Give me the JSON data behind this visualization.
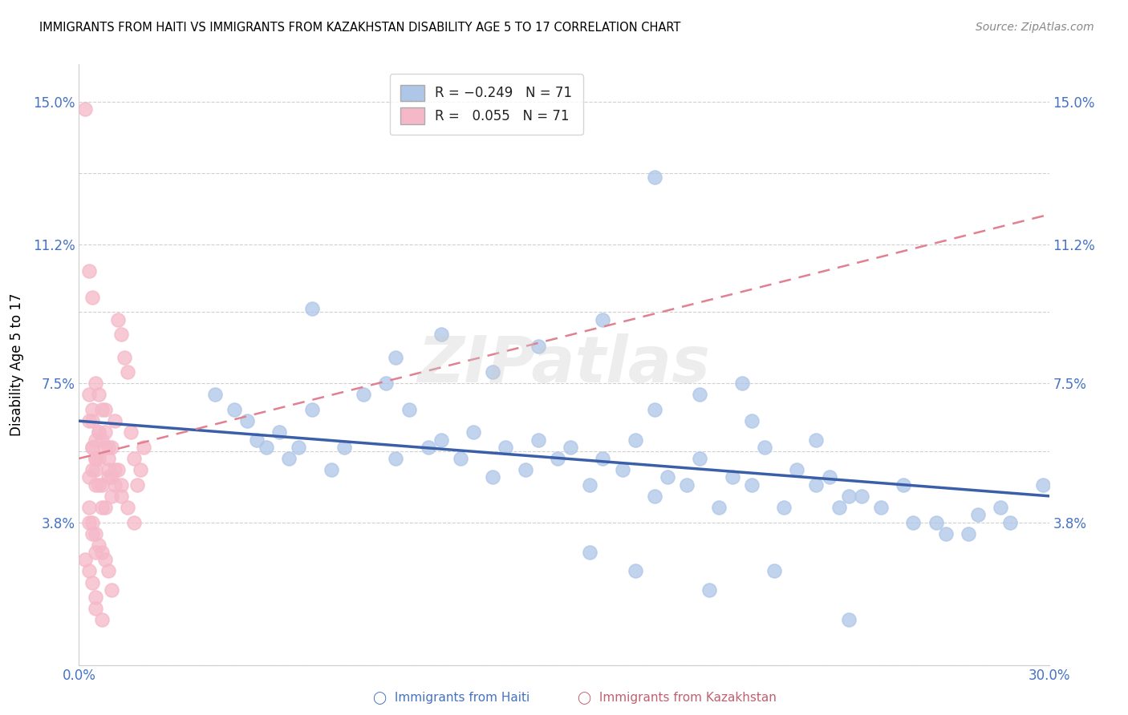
{
  "title": "IMMIGRANTS FROM HAITI VS IMMIGRANTS FROM KAZAKHSTAN DISABILITY AGE 5 TO 17 CORRELATION CHART",
  "source": "Source: ZipAtlas.com",
  "ylabel": "Disability Age 5 to 17",
  "xlim": [
    0.0,
    0.3
  ],
  "ylim": [
    0.0,
    0.16
  ],
  "ytick_labels": [
    "",
    "3.8%",
    "",
    "7.5%",
    "",
    "11.2%",
    "",
    "15.0%"
  ],
  "ytick_values": [
    0.0,
    0.038,
    0.057,
    0.075,
    0.094,
    0.112,
    0.131,
    0.15
  ],
  "xtick_positions": [
    0.0,
    0.03,
    0.06,
    0.09,
    0.12,
    0.15,
    0.18,
    0.21,
    0.24,
    0.27,
    0.3
  ],
  "xtick_labels": [
    "0.0%",
    "",
    "",
    "",
    "",
    "",
    "",
    "",
    "",
    "",
    "30.0%"
  ],
  "haiti_R": -0.249,
  "haiti_N": 71,
  "kazakhstan_R": 0.055,
  "kazakhstan_N": 71,
  "haiti_color": "#aec6e8",
  "kazakhstan_color": "#f5b8c8",
  "haiti_line_color": "#3a5fa8",
  "kazakhstan_line_color": "#e08090",
  "grid_color": "#d0d0d0",
  "watermark_text": "ZIPatlas",
  "haiti_x": [
    0.042,
    0.048,
    0.052,
    0.055,
    0.058,
    0.062,
    0.065,
    0.068,
    0.072,
    0.078,
    0.082,
    0.088,
    0.095,
    0.098,
    0.102,
    0.108,
    0.112,
    0.118,
    0.122,
    0.128,
    0.132,
    0.138,
    0.142,
    0.148,
    0.152,
    0.158,
    0.162,
    0.168,
    0.172,
    0.178,
    0.182,
    0.188,
    0.192,
    0.198,
    0.202,
    0.208,
    0.212,
    0.218,
    0.222,
    0.228,
    0.232,
    0.238,
    0.072,
    0.098,
    0.112,
    0.128,
    0.142,
    0.162,
    0.178,
    0.192,
    0.208,
    0.228,
    0.242,
    0.178,
    0.205,
    0.235,
    0.255,
    0.265,
    0.275,
    0.285,
    0.248,
    0.258,
    0.268,
    0.278,
    0.288,
    0.298,
    0.158,
    0.172,
    0.195,
    0.215,
    0.238
  ],
  "haiti_y": [
    0.072,
    0.068,
    0.065,
    0.06,
    0.058,
    0.062,
    0.055,
    0.058,
    0.068,
    0.052,
    0.058,
    0.072,
    0.075,
    0.055,
    0.068,
    0.058,
    0.06,
    0.055,
    0.062,
    0.05,
    0.058,
    0.052,
    0.06,
    0.055,
    0.058,
    0.048,
    0.055,
    0.052,
    0.06,
    0.045,
    0.05,
    0.048,
    0.055,
    0.042,
    0.05,
    0.048,
    0.058,
    0.042,
    0.052,
    0.048,
    0.05,
    0.045,
    0.095,
    0.082,
    0.088,
    0.078,
    0.085,
    0.092,
    0.068,
    0.072,
    0.065,
    0.06,
    0.045,
    0.13,
    0.075,
    0.042,
    0.048,
    0.038,
    0.035,
    0.042,
    0.042,
    0.038,
    0.035,
    0.04,
    0.038,
    0.048,
    0.03,
    0.025,
    0.02,
    0.025,
    0.012
  ],
  "kazakhstan_x": [
    0.002,
    0.003,
    0.004,
    0.005,
    0.006,
    0.007,
    0.008,
    0.009,
    0.01,
    0.011,
    0.012,
    0.013,
    0.014,
    0.015,
    0.016,
    0.017,
    0.018,
    0.019,
    0.02,
    0.003,
    0.004,
    0.005,
    0.006,
    0.007,
    0.008,
    0.009,
    0.01,
    0.011,
    0.012,
    0.013,
    0.003,
    0.004,
    0.005,
    0.006,
    0.007,
    0.008,
    0.009,
    0.01,
    0.004,
    0.005,
    0.006,
    0.007,
    0.003,
    0.004,
    0.005,
    0.006,
    0.004,
    0.005,
    0.003,
    0.004,
    0.005,
    0.006,
    0.007,
    0.008,
    0.009,
    0.003,
    0.004,
    0.005,
    0.002,
    0.003,
    0.004,
    0.005,
    0.008,
    0.009,
    0.011,
    0.013,
    0.015,
    0.017,
    0.005,
    0.007,
    0.01
  ],
  "kazakhstan_y": [
    0.148,
    0.05,
    0.065,
    0.055,
    0.062,
    0.06,
    0.068,
    0.052,
    0.058,
    0.065,
    0.092,
    0.088,
    0.082,
    0.078,
    0.062,
    0.055,
    0.048,
    0.052,
    0.058,
    0.105,
    0.098,
    0.075,
    0.072,
    0.068,
    0.058,
    0.055,
    0.05,
    0.048,
    0.052,
    0.045,
    0.065,
    0.058,
    0.055,
    0.062,
    0.048,
    0.042,
    0.05,
    0.045,
    0.058,
    0.052,
    0.048,
    0.042,
    0.072,
    0.068,
    0.06,
    0.055,
    0.052,
    0.048,
    0.042,
    0.038,
    0.035,
    0.032,
    0.03,
    0.028,
    0.025,
    0.038,
    0.035,
    0.03,
    0.028,
    0.025,
    0.022,
    0.018,
    0.062,
    0.058,
    0.052,
    0.048,
    0.042,
    0.038,
    0.015,
    0.012,
    0.02
  ]
}
